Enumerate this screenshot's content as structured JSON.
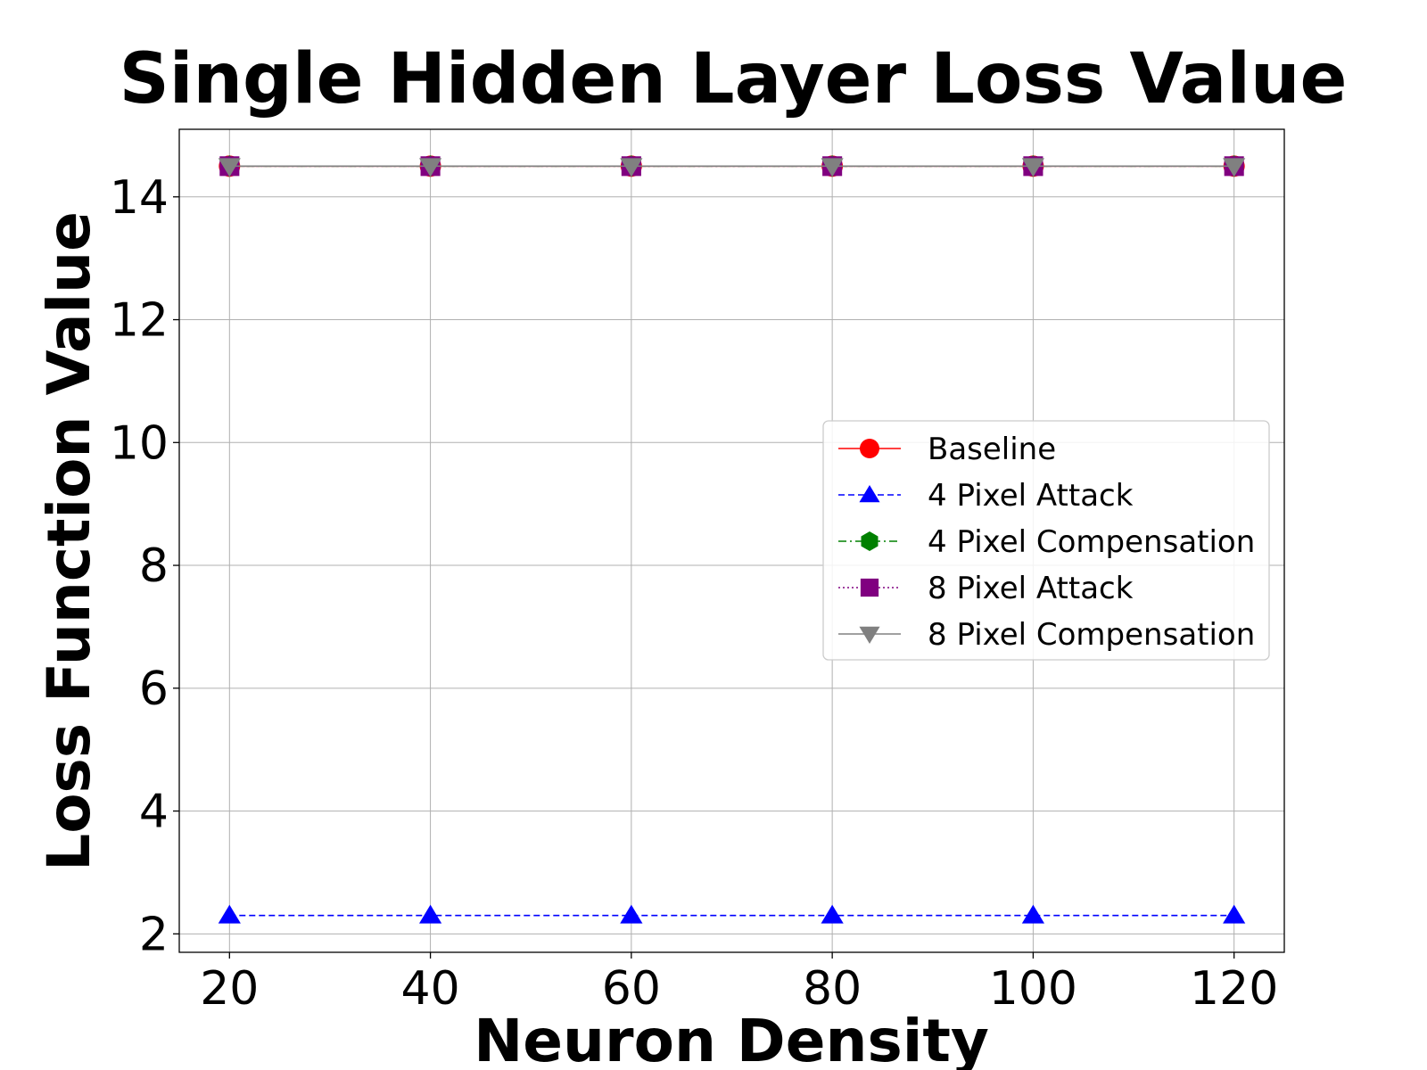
{
  "chart_data": {
    "type": "line",
    "title": "Single Hidden Layer Loss Value",
    "xlabel": "Neuron Density",
    "ylabel": "Loss Function Value",
    "x": [
      20,
      40,
      60,
      80,
      100,
      120
    ],
    "xlim": [
      15,
      125
    ],
    "ylim": [
      1.7,
      15.1
    ],
    "xticks": [
      20,
      40,
      60,
      80,
      100,
      120
    ],
    "yticks": [
      2,
      4,
      6,
      8,
      10,
      12,
      14
    ],
    "grid": true,
    "legend_position": "center-right",
    "series": [
      {
        "name": "Baseline",
        "values": [
          14.5,
          14.5,
          14.5,
          14.5,
          14.5,
          14.5
        ],
        "color": "#ff0000",
        "linestyle": "solid",
        "marker": "circle"
      },
      {
        "name": "4 Pixel Attack",
        "values": [
          2.3,
          2.3,
          2.3,
          2.3,
          2.3,
          2.3
        ],
        "color": "#0000ff",
        "linestyle": "dashed",
        "marker": "triangle-up"
      },
      {
        "name": "4 Pixel Compensation",
        "values": [
          14.5,
          14.5,
          14.5,
          14.5,
          14.5,
          14.5
        ],
        "color": "#008000",
        "linestyle": "dashdot",
        "marker": "hexagon"
      },
      {
        "name": "8 Pixel Attack",
        "values": [
          14.5,
          14.5,
          14.5,
          14.5,
          14.5,
          14.5
        ],
        "color": "#800080",
        "linestyle": "dotted",
        "marker": "square"
      },
      {
        "name": "8 Pixel Compensation",
        "values": [
          14.5,
          14.5,
          14.5,
          14.5,
          14.5,
          14.5
        ],
        "color": "#808080",
        "linestyle": "solid",
        "marker": "triangle-down"
      }
    ]
  }
}
